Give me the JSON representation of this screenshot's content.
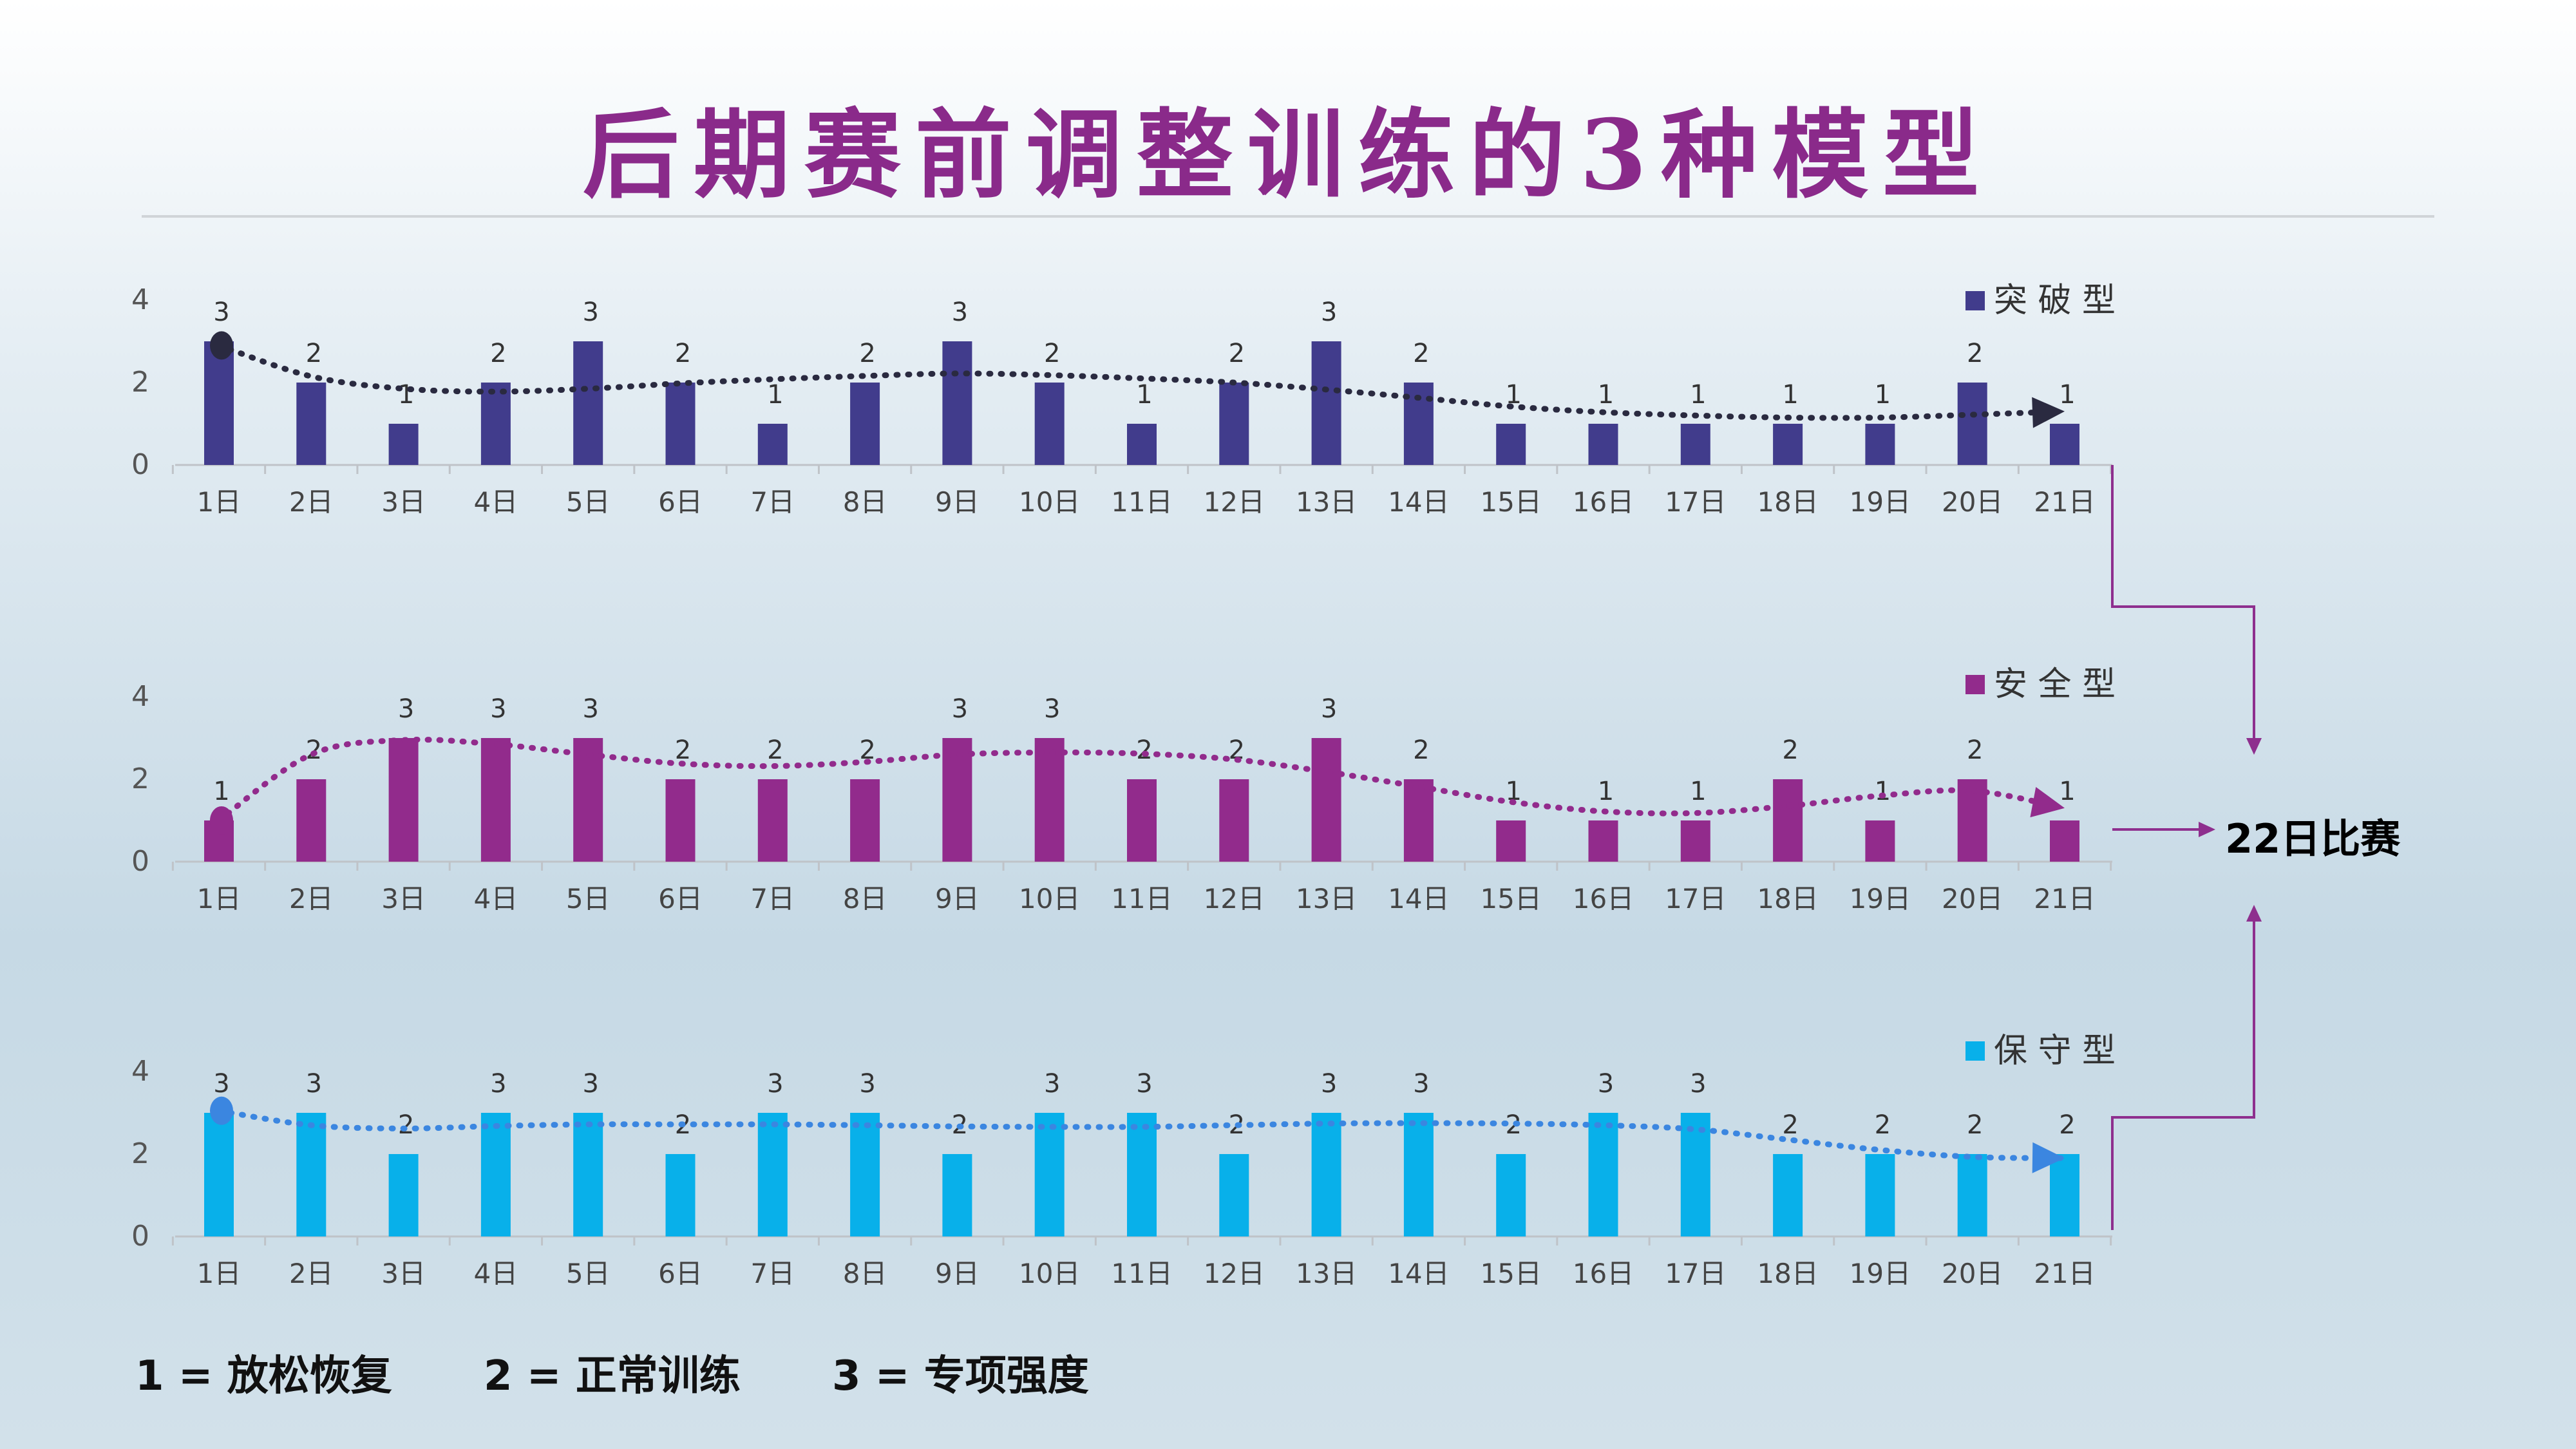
{
  "title": "后期赛前调整训练的3种模型",
  "note_items": [
    "1 = 放松恢复",
    "2 = 正常训练",
    "3 = 专项强度"
  ],
  "match_label": "22日比赛",
  "chart_data": [
    {
      "type": "bar",
      "legend": "突 破 型",
      "color": "#413c8c",
      "trend_color": "#2a2a40",
      "categories": [
        "1日",
        "2日",
        "3日",
        "4日",
        "5日",
        "6日",
        "7日",
        "8日",
        "9日",
        "10日",
        "11日",
        "12日",
        "13日",
        "14日",
        "15日",
        "16日",
        "17日",
        "18日",
        "19日",
        "20日",
        "21日"
      ],
      "values": [
        3,
        2,
        1,
        2,
        3,
        2,
        1,
        2,
        3,
        2,
        1,
        2,
        3,
        2,
        1,
        1,
        1,
        1,
        1,
        2,
        1
      ],
      "trend": [
        2.9,
        2.15,
        1.85,
        1.78,
        1.85,
        1.98,
        2.08,
        2.16,
        2.22,
        2.18,
        2.1,
        2.0,
        1.83,
        1.63,
        1.42,
        1.28,
        1.2,
        1.15,
        1.15,
        1.22,
        1.3
      ],
      "ylim": [
        0,
        4
      ],
      "yticks": [
        0,
        2,
        4
      ]
    },
    {
      "type": "bar",
      "legend": "安 全 型",
      "color": "#922b8c",
      "trend_color": "#922b8c",
      "categories": [
        "1日",
        "2日",
        "3日",
        "4日",
        "5日",
        "6日",
        "7日",
        "8日",
        "9日",
        "10日",
        "11日",
        "12日",
        "13日",
        "14日",
        "15日",
        "16日",
        "17日",
        "18日",
        "19日",
        "20日",
        "21日"
      ],
      "values": [
        1,
        2,
        3,
        3,
        3,
        2,
        2,
        2,
        3,
        3,
        2,
        2,
        3,
        2,
        1,
        1,
        1,
        2,
        1,
        2,
        1
      ],
      "trend": [
        1.0,
        2.6,
        2.95,
        2.85,
        2.6,
        2.38,
        2.32,
        2.42,
        2.6,
        2.65,
        2.62,
        2.48,
        2.18,
        1.82,
        1.45,
        1.22,
        1.18,
        1.35,
        1.6,
        1.72,
        1.3
      ],
      "ylim": [
        0,
        4
      ],
      "yticks": [
        0,
        2,
        4
      ]
    },
    {
      "type": "bar",
      "legend": "保 守 型",
      "color": "#08b0ea",
      "trend_color": "#3b86e0",
      "categories": [
        "1日",
        "2日",
        "3日",
        "4日",
        "5日",
        "6日",
        "7日",
        "8日",
        "9日",
        "10日",
        "11日",
        "12日",
        "13日",
        "14日",
        "15日",
        "16日",
        "17日",
        "18日",
        "19日",
        "20日",
        "21日"
      ],
      "values": [
        3,
        3,
        2,
        3,
        3,
        2,
        3,
        3,
        2,
        3,
        3,
        2,
        3,
        3,
        2,
        3,
        3,
        2,
        2,
        2,
        2
      ],
      "trend": [
        3.05,
        2.7,
        2.62,
        2.68,
        2.72,
        2.72,
        2.72,
        2.7,
        2.67,
        2.66,
        2.66,
        2.7,
        2.74,
        2.75,
        2.74,
        2.7,
        2.6,
        2.35,
        2.1,
        1.93,
        1.9
      ],
      "ylim": [
        0,
        4
      ],
      "yticks": [
        0,
        2,
        4
      ]
    }
  ]
}
